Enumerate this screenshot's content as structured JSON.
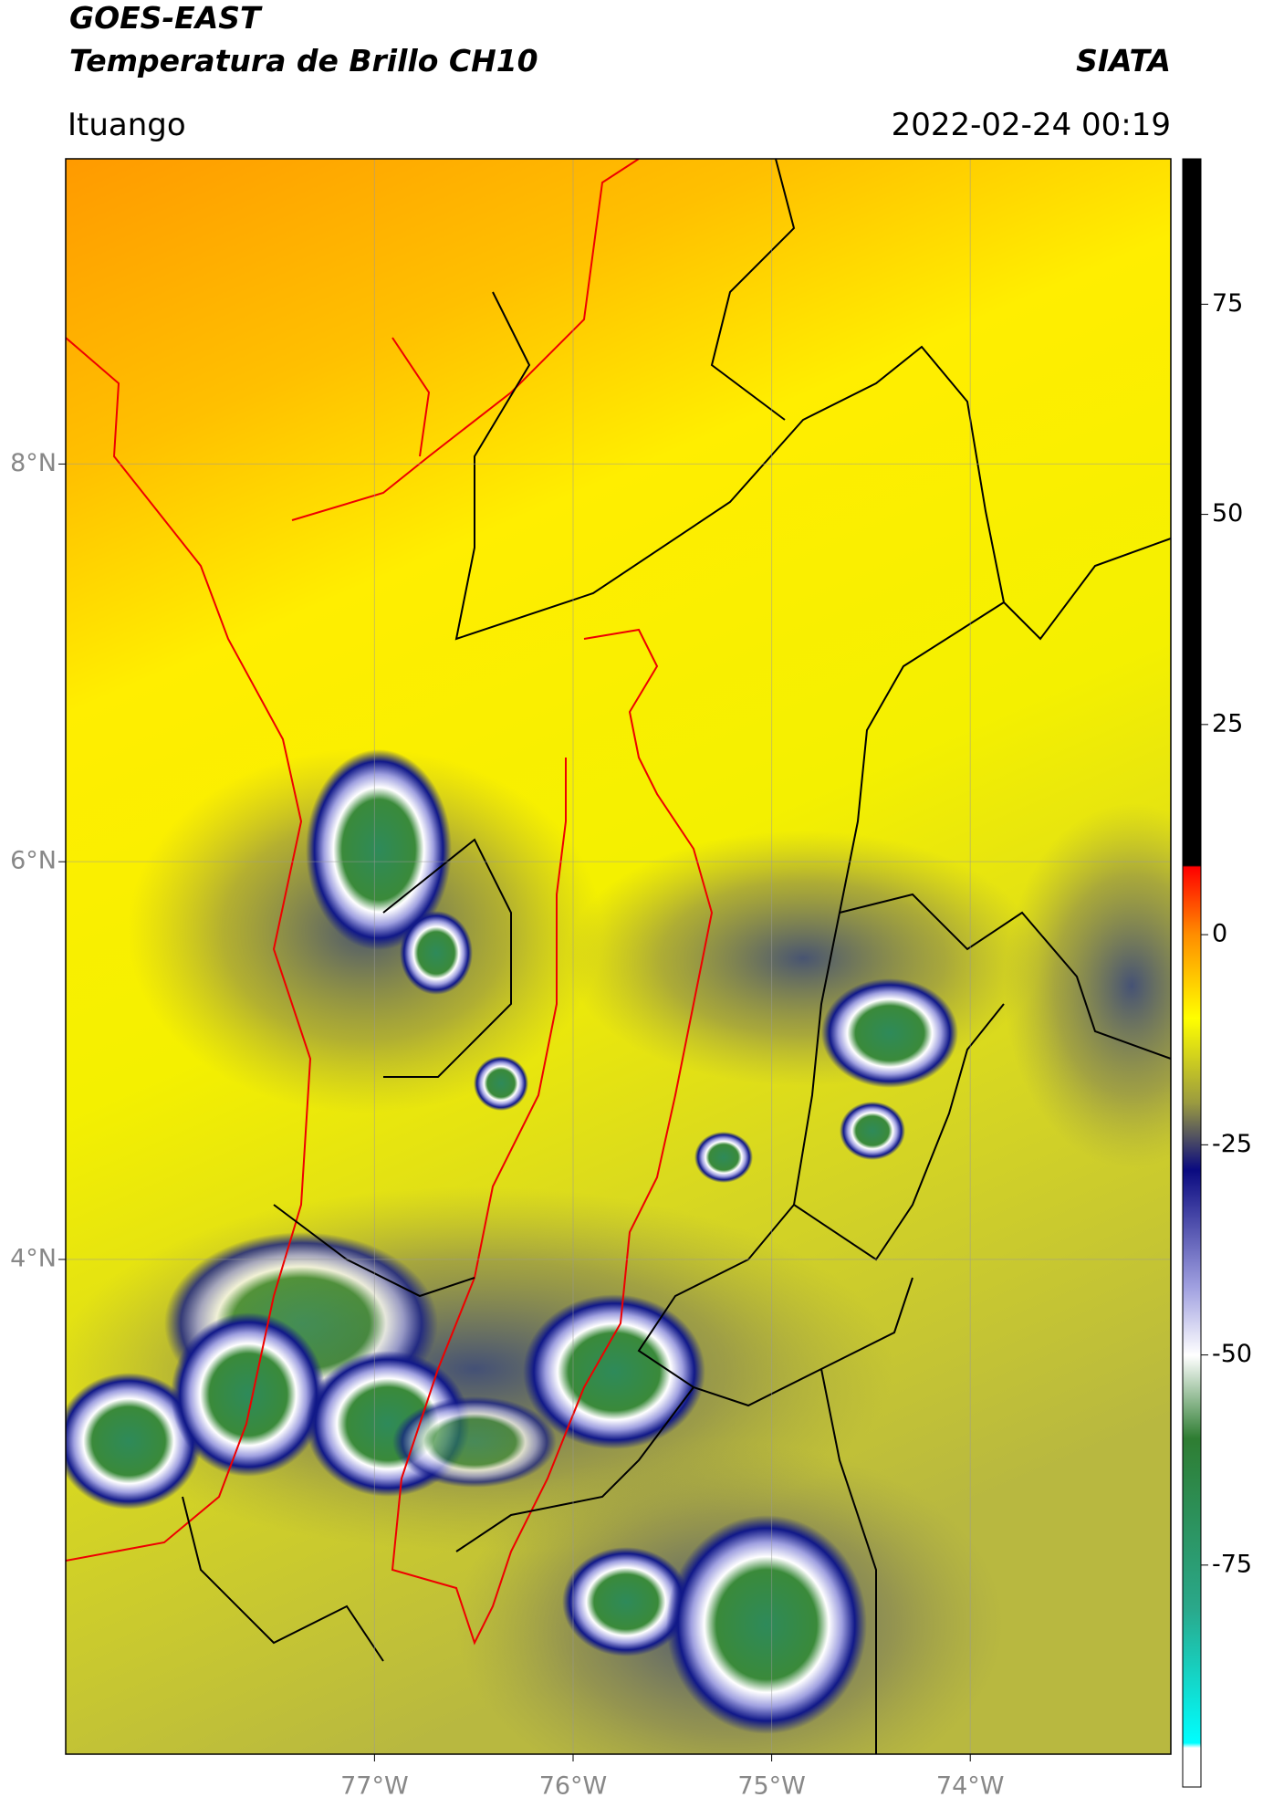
{
  "header": {
    "title": "GOES-EAST",
    "subtitle": "Temperatura de Brillo CH10",
    "source": "SIATA",
    "location": "Ituango",
    "datetime": "2022-02-24 00:19"
  },
  "map": {
    "xlim": [
      -78.555,
      -72.99
    ],
    "ylim": [
      1.512,
      9.535
    ],
    "xticks": [
      {
        "value": -77,
        "label": "77°W"
      },
      {
        "value": -76,
        "label": "76°W"
      },
      {
        "value": -75,
        "label": "75°W"
      },
      {
        "value": -74,
        "label": "74°W"
      }
    ],
    "yticks": [
      {
        "value": 8,
        "label": "8°N"
      },
      {
        "value": 6,
        "label": "6°N"
      },
      {
        "value": 4,
        "label": "4°N"
      }
    ],
    "grid": true
  },
  "colorbar": {
    "lim": [
      -101.4,
      92.3
    ],
    "ticks": [
      75,
      50,
      25,
      0,
      -25,
      -50,
      -75
    ]
  }
}
